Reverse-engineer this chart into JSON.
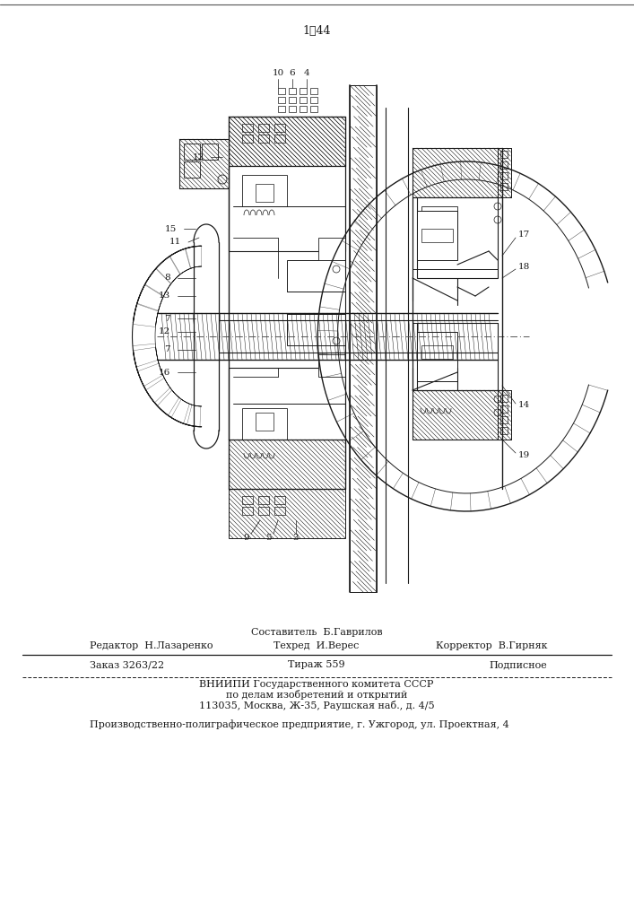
{
  "patent_number": "1䁸44",
  "background_color": "#ffffff",
  "line_color": "#1a1a1a",
  "footer": {
    "line1_center_top": "Составитель  Б.Гаврилов",
    "line1_left": "Редактор  Н.Лазаренко",
    "line1_center": "Техред  И.Верес",
    "line1_right": "Корректор  В.Гирняк",
    "line2_left": "Заказ 3263/22",
    "line2_center": "Тираж 559",
    "line2_right": "Подписное",
    "line3": "ВНИИПИ Государственного комитета СССР",
    "line4": "по делам изобретений и открытий",
    "line5": "113035, Москва, Ж-35, Раушская наб., д. 4/5",
    "line6": "Производственно-полиграфическое предприятие, г. Ужгород, ул. Проектная, 4"
  }
}
